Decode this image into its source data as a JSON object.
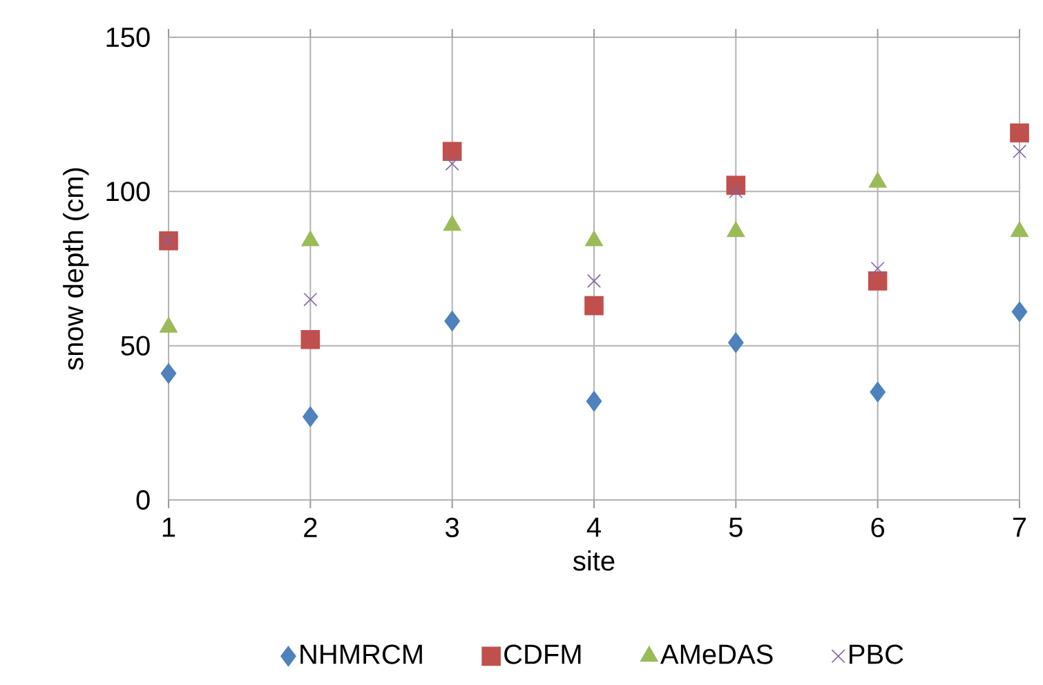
{
  "chart_data": {
    "type": "scatter",
    "xlabel": "site",
    "ylabel": "snow depth (cm)",
    "x": [
      1,
      2,
      3,
      4,
      5,
      6,
      7
    ],
    "xlim": [
      1,
      7
    ],
    "xticks": [
      1,
      2,
      3,
      4,
      5,
      6,
      7
    ],
    "ylim": [
      0,
      150
    ],
    "yticks": [
      0,
      50,
      100,
      150
    ],
    "grid": true,
    "legend": "bottom",
    "series": [
      {
        "name": "NHMRCM",
        "color": "#4f81bd",
        "marker": "diamond",
        "values": [
          41,
          27,
          58,
          32,
          51,
          35,
          61
        ]
      },
      {
        "name": "CDFM",
        "color": "#c0504d",
        "marker": "square",
        "values": [
          84,
          52,
          113,
          63,
          102,
          71,
          119
        ]
      },
      {
        "name": "AMeDAS",
        "color": "#9bbb59",
        "marker": "triangle",
        "values": [
          56,
          84,
          89,
          84,
          87,
          103,
          87
        ]
      },
      {
        "name": "PBC",
        "color": "#8064a2",
        "marker": "cross",
        "values": [
          84,
          65,
          109,
          71,
          100,
          75,
          113
        ]
      }
    ]
  }
}
